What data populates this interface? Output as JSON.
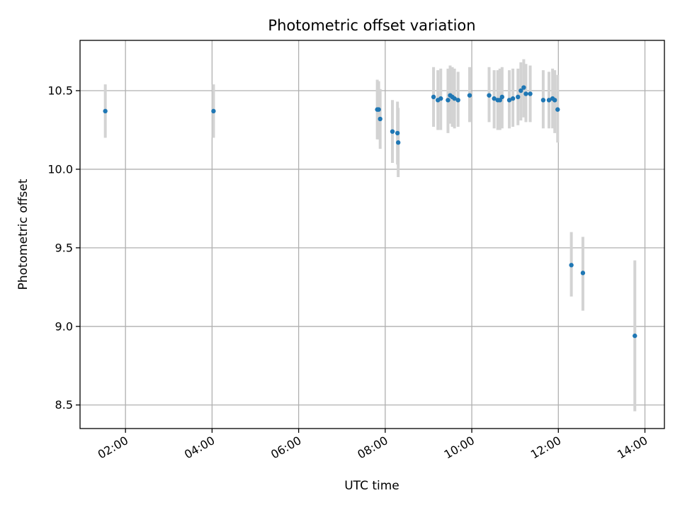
{
  "chart_data": {
    "type": "scatter",
    "title": "Photometric offset variation",
    "xlabel": "UTC time",
    "ylabel": "Photometric offset",
    "x_axis": {
      "kind": "time",
      "range": [
        "00:57",
        "14:27"
      ],
      "ticks": [
        "02:00",
        "04:00",
        "06:00",
        "08:00",
        "10:00",
        "12:00",
        "14:00"
      ]
    },
    "y_axis": {
      "range": [
        8.35,
        10.82
      ],
      "ticks": [
        8.5,
        9.0,
        9.5,
        10.0,
        10.5
      ],
      "tick_labels": [
        "8.5",
        "9.0",
        "9.5",
        "10.0",
        "10.5"
      ]
    },
    "grid": true,
    "colors": {
      "point": "#1f77b4",
      "error_bar": "#d3d3d3",
      "grid": "#b0b0b0"
    },
    "points": [
      {
        "x": "01:32",
        "y": 10.37,
        "lo": 10.2,
        "hi": 10.54
      },
      {
        "x": "04:02",
        "y": 10.37,
        "lo": 10.2,
        "hi": 10.54
      },
      {
        "x": "07:49",
        "y": 10.38,
        "lo": 10.19,
        "hi": 10.57
      },
      {
        "x": "07:51",
        "y": 10.38,
        "lo": 10.19,
        "hi": 10.56
      },
      {
        "x": "07:53",
        "y": 10.32,
        "lo": 10.13,
        "hi": 10.51
      },
      {
        "x": "08:10",
        "y": 10.24,
        "lo": 10.04,
        "hi": 10.44
      },
      {
        "x": "08:17",
        "y": 10.23,
        "lo": 10.03,
        "hi": 10.43
      },
      {
        "x": "08:18",
        "y": 10.17,
        "lo": 9.95,
        "hi": 10.39
      },
      {
        "x": "09:07",
        "y": 10.46,
        "lo": 10.27,
        "hi": 10.65
      },
      {
        "x": "09:13",
        "y": 10.44,
        "lo": 10.25,
        "hi": 10.63
      },
      {
        "x": "09:17",
        "y": 10.45,
        "lo": 10.25,
        "hi": 10.64
      },
      {
        "x": "09:27",
        "y": 10.44,
        "lo": 10.23,
        "hi": 10.64
      },
      {
        "x": "09:30",
        "y": 10.47,
        "lo": 10.29,
        "hi": 10.66
      },
      {
        "x": "09:33",
        "y": 10.46,
        "lo": 10.27,
        "hi": 10.65
      },
      {
        "x": "09:36",
        "y": 10.45,
        "lo": 10.26,
        "hi": 10.64
      },
      {
        "x": "09:41",
        "y": 10.44,
        "lo": 10.27,
        "hi": 10.62
      },
      {
        "x": "09:57",
        "y": 10.47,
        "lo": 10.3,
        "hi": 10.65
      },
      {
        "x": "10:24",
        "y": 10.47,
        "lo": 10.3,
        "hi": 10.65
      },
      {
        "x": "10:31",
        "y": 10.45,
        "lo": 10.26,
        "hi": 10.63
      },
      {
        "x": "10:36",
        "y": 10.44,
        "lo": 10.25,
        "hi": 10.63
      },
      {
        "x": "10:39",
        "y": 10.44,
        "lo": 10.25,
        "hi": 10.64
      },
      {
        "x": "10:42",
        "y": 10.46,
        "lo": 10.26,
        "hi": 10.65
      },
      {
        "x": "10:52",
        "y": 10.44,
        "lo": 10.26,
        "hi": 10.63
      },
      {
        "x": "10:57",
        "y": 10.45,
        "lo": 10.27,
        "hi": 10.64
      },
      {
        "x": "11:04",
        "y": 10.46,
        "lo": 10.28,
        "hi": 10.64
      },
      {
        "x": "11:08",
        "y": 10.5,
        "lo": 10.31,
        "hi": 10.68
      },
      {
        "x": "11:12",
        "y": 10.52,
        "lo": 10.33,
        "hi": 10.7
      },
      {
        "x": "11:15",
        "y": 10.48,
        "lo": 10.3,
        "hi": 10.67
      },
      {
        "x": "11:21",
        "y": 10.48,
        "lo": 10.3,
        "hi": 10.66
      },
      {
        "x": "11:39",
        "y": 10.44,
        "lo": 10.26,
        "hi": 10.63
      },
      {
        "x": "11:47",
        "y": 10.44,
        "lo": 10.26,
        "hi": 10.62
      },
      {
        "x": "11:52",
        "y": 10.45,
        "lo": 10.26,
        "hi": 10.64
      },
      {
        "x": "11:55",
        "y": 10.44,
        "lo": 10.23,
        "hi": 10.63
      },
      {
        "x": "11:59",
        "y": 10.38,
        "lo": 10.17,
        "hi": 10.6
      },
      {
        "x": "12:18",
        "y": 9.39,
        "lo": 9.19,
        "hi": 9.6
      },
      {
        "x": "12:34",
        "y": 9.34,
        "lo": 9.1,
        "hi": 9.57
      },
      {
        "x": "13:46",
        "y": 8.94,
        "lo": 8.46,
        "hi": 9.42
      }
    ]
  }
}
